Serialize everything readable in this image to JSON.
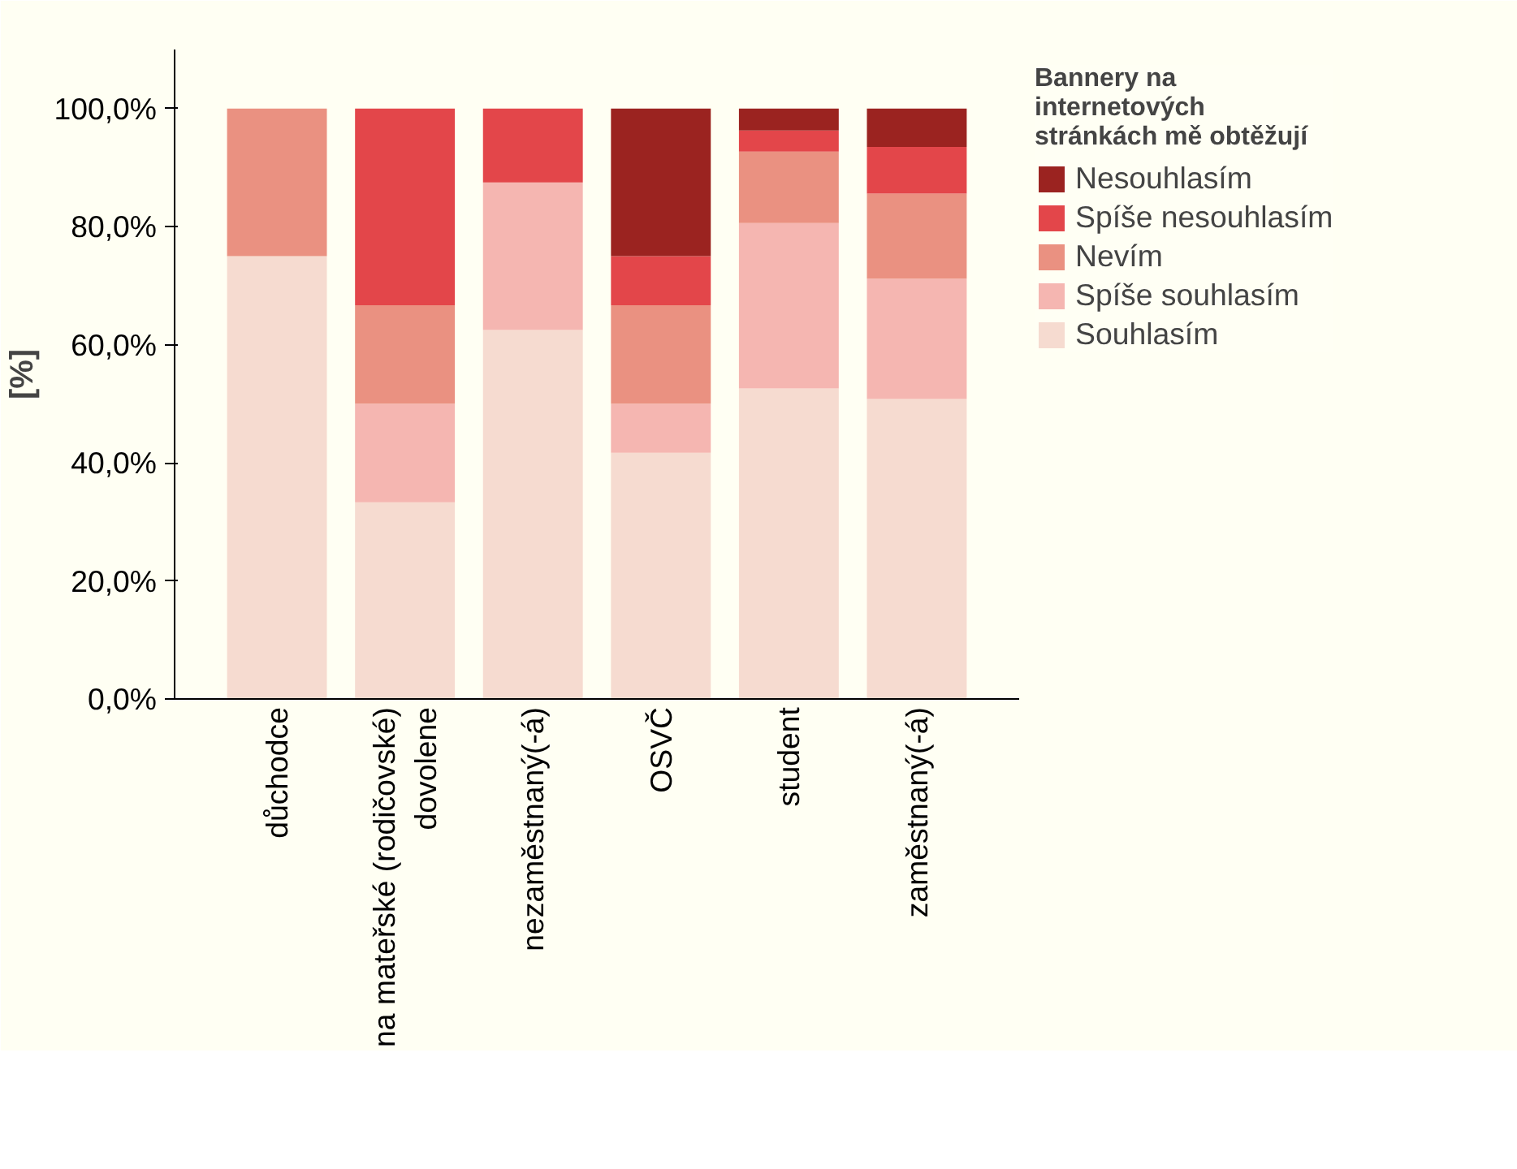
{
  "chart_data": {
    "type": "bar",
    "stacked": true,
    "ylabel": "[%]",
    "legend_title": "Bannery na internetových stránkách mě obtěžují",
    "categories": [
      "důchodce",
      "na mateřské (rodičovské) dovolene",
      "nezaměstnaný(-á)",
      "OSVČ",
      "student",
      "zaměstnaný(-á)"
    ],
    "series": [
      {
        "name": "Souhlasím",
        "color": "#f6dbd0",
        "values": [
          75,
          33.3,
          62.5,
          41.7,
          52.6,
          50.8
        ]
      },
      {
        "name": "Spíše souhlasím",
        "color": "#f5b6b1",
        "values": [
          0,
          16.7,
          25,
          8.3,
          28,
          20.4
        ]
      },
      {
        "name": "Nevím",
        "color": "#ea9181",
        "values": [
          25,
          16.7,
          0,
          16.7,
          12.1,
          14.4
        ]
      },
      {
        "name": "Spíše nesouhlasím",
        "color": "#e3464a",
        "values": [
          0,
          33.3,
          12.5,
          8.3,
          3.6,
          7.9
        ]
      },
      {
        "name": "Nesouhlasím",
        "color": "#9b2320",
        "values": [
          0,
          0,
          0,
          25,
          3.7,
          6.5
        ]
      }
    ],
    "ylim": [
      0,
      110
    ],
    "yticks": [
      {
        "value": 0,
        "label": "0,0%"
      },
      {
        "value": 20,
        "label": "20,0%"
      },
      {
        "value": 40,
        "label": "40,0%"
      },
      {
        "value": 60,
        "label": "60,0%"
      },
      {
        "value": 80,
        "label": "80,0%"
      },
      {
        "value": 100,
        "label": "100,0%"
      }
    ],
    "grid": false,
    "legend": "right"
  }
}
